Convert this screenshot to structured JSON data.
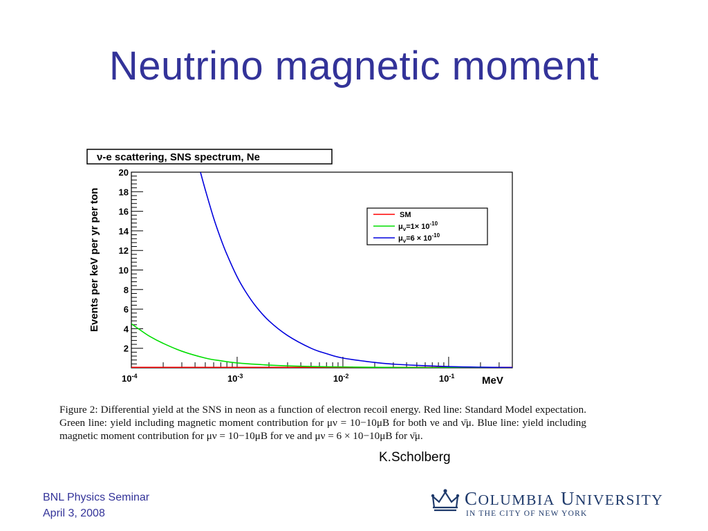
{
  "slide": {
    "title": "Neutrino magnetic moment",
    "credit": "K.Scholberg",
    "footer_line1": "BNL Physics Seminar",
    "footer_line2": "April 3, 2008"
  },
  "logo": {
    "name_c": "C",
    "name_olumbia": "OLUMBIA",
    "name_u": "U",
    "name_niversity": "NIVERSITY",
    "subtitle": "IN THE CITY OF NEW YORK",
    "color": "#1f3a6b",
    "icon": "crown-icon"
  },
  "caption": {
    "text": "Figure 2: Differential yield at the SNS in neon as a function of electron recoil energy. Red line: Standard Model expectation. Green line: yield including magnetic moment contribution for μν = 10−10μB for both νe and ν̄μ. Blue line: yield including magnetic moment contribution for μν = 10−10μB for νe and μν = 6 × 10−10μB for ν̄μ."
  },
  "chart_data": {
    "type": "line",
    "title": "ν-e scattering, SNS spectrum, Ne",
    "ylabel": "Events per keV per yr per ton",
    "xlabel": "MeV",
    "xscale": "log",
    "xlim": [
      0.0001,
      0.4
    ],
    "ylim": [
      0,
      20
    ],
    "x_tick_labels": [
      {
        "value": 0.0001,
        "base": "10",
        "exp": "-4"
      },
      {
        "value": 0.001,
        "base": "10",
        "exp": "-3"
      },
      {
        "value": 0.01,
        "base": "10",
        "exp": "-2"
      },
      {
        "value": 0.1,
        "base": "10",
        "exp": "-1"
      }
    ],
    "y_ticks": [
      2,
      4,
      6,
      8,
      10,
      12,
      14,
      16,
      18,
      20
    ],
    "legend_position": "top-right",
    "series": [
      {
        "name": "SM",
        "name_html": "SM",
        "color": "#ff0000",
        "x": [
          0.0001,
          0.001,
          0.01,
          0.1,
          0.4
        ],
        "y": [
          0.05,
          0.05,
          0.05,
          0.05,
          0.05
        ]
      },
      {
        "name": "μν=1×10-10",
        "prefix": "μ",
        "sub": "ν",
        "mid": "=1× 10",
        "exp": "-10",
        "color": "#00dd00",
        "x": [
          0.0001,
          0.00012,
          0.00015,
          0.0002,
          0.0003,
          0.0005,
          0.0007,
          0.001,
          0.002,
          0.003,
          0.005,
          0.01,
          0.02,
          0.05,
          0.1,
          0.4
        ],
        "y": [
          4.5,
          3.9,
          3.2,
          2.5,
          1.7,
          1.0,
          0.72,
          0.5,
          0.28,
          0.2,
          0.14,
          0.09,
          0.06,
          0.03,
          0.02,
          0.01
        ]
      },
      {
        "name": "μν=6×10-10",
        "prefix": "μ",
        "sub": "ν",
        "mid": "=6 × 10",
        "exp": "-10",
        "color": "#0000dd",
        "x": [
          0.00045,
          0.0005,
          0.0006,
          0.0007,
          0.0008,
          0.001,
          0.0012,
          0.0015,
          0.002,
          0.003,
          0.005,
          0.007,
          0.01,
          0.02,
          0.03,
          0.05,
          0.1,
          0.2,
          0.4
        ],
        "y": [
          20,
          18.2,
          15.3,
          13.2,
          11.6,
          9.3,
          7.8,
          6.3,
          4.8,
          3.3,
          2.0,
          1.45,
          1.0,
          0.55,
          0.38,
          0.25,
          0.13,
          0.07,
          0.03
        ]
      }
    ]
  }
}
